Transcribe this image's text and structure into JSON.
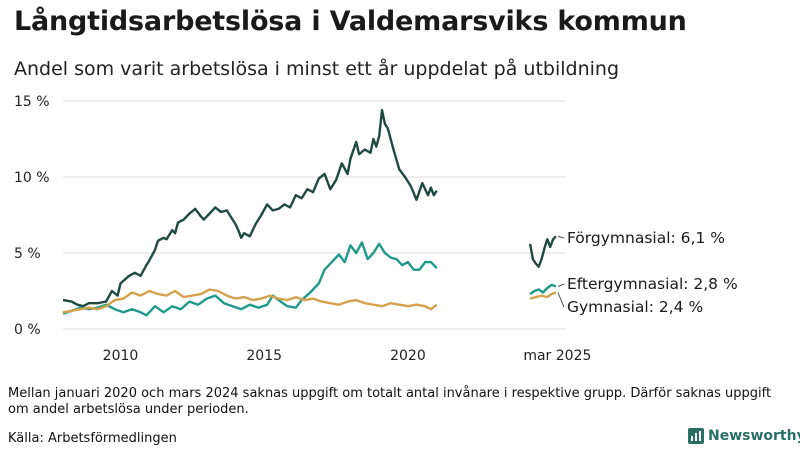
{
  "header": {
    "title": "Långtidsarbetslösa i Valdemarsviks kommun",
    "subtitle": "Andel som varit arbetslösa i minst ett år uppdelat på utbildning"
  },
  "footer": {
    "note": "Mellan januari 2020 och mars 2024 saknas uppgift om totalt antal invånare i respektive grupp. Därför saknas uppgift om andel arbetslösa under perioden.",
    "source": "Källa: Arbetsförmedlingen",
    "brand": "Newsworthy"
  },
  "colors": {
    "forgymnasial": "#1f4a42",
    "eftergymnasial": "#1f9a8a",
    "gymnasial": "#d4a24c",
    "grid": "#dcdcdc",
    "brand": "#2a6f63"
  },
  "chart_data": {
    "type": "line",
    "y_unit": "%",
    "ylim": [
      0,
      15
    ],
    "y_ticks": [
      {
        "value": 0,
        "label": "0 %"
      },
      {
        "value": 5,
        "label": "5 %"
      },
      {
        "value": 10,
        "label": "10 %"
      },
      {
        "value": 15,
        "label": "15 %"
      }
    ],
    "xlim": [
      2008.0,
      2025.5
    ],
    "x_ticks": [
      {
        "value": 2010,
        "label": "2010"
      },
      {
        "value": 2015,
        "label": "2015"
      },
      {
        "value": 2020,
        "label": "2020"
      },
      {
        "value": 2025.2,
        "label": "mar 2025"
      }
    ],
    "grid": "horizontal",
    "series": [
      {
        "name": "Förgymnasial",
        "end_label": "Förgymnasial: 6,1 %",
        "color_key": "forgymnasial",
        "segments": [
          [
            [
              2008.0,
              1.9
            ],
            [
              2008.3,
              1.8
            ],
            [
              2008.5,
              1.6
            ],
            [
              2008.7,
              1.5
            ],
            [
              2008.9,
              1.7
            ],
            [
              2009.2,
              1.7
            ],
            [
              2009.5,
              1.8
            ],
            [
              2009.7,
              2.5
            ],
            [
              2009.9,
              2.2
            ],
            [
              2010.0,
              3.0
            ],
            [
              2010.3,
              3.5
            ],
            [
              2010.5,
              3.7
            ],
            [
              2010.7,
              3.5
            ],
            [
              2010.9,
              4.2
            ],
            [
              2011.0,
              4.5
            ],
            [
              2011.2,
              5.2
            ],
            [
              2011.3,
              5.8
            ],
            [
              2011.5,
              6.0
            ],
            [
              2011.6,
              5.9
            ],
            [
              2011.8,
              6.5
            ],
            [
              2011.9,
              6.3
            ],
            [
              2012.0,
              7.0
            ],
            [
              2012.2,
              7.2
            ],
            [
              2012.4,
              7.6
            ],
            [
              2012.6,
              7.9
            ],
            [
              2012.8,
              7.4
            ],
            [
              2012.9,
              7.2
            ],
            [
              2013.1,
              7.6
            ],
            [
              2013.3,
              8.0
            ],
            [
              2013.5,
              7.7
            ],
            [
              2013.7,
              7.8
            ],
            [
              2013.9,
              7.2
            ],
            [
              2014.0,
              6.9
            ],
            [
              2014.1,
              6.5
            ],
            [
              2014.2,
              6.0
            ],
            [
              2014.3,
              6.3
            ],
            [
              2014.5,
              6.1
            ],
            [
              2014.7,
              6.9
            ],
            [
              2014.9,
              7.5
            ],
            [
              2015.1,
              8.2
            ],
            [
              2015.3,
              7.8
            ],
            [
              2015.5,
              7.9
            ],
            [
              2015.7,
              8.2
            ],
            [
              2015.9,
              8.0
            ],
            [
              2016.1,
              8.8
            ],
            [
              2016.3,
              8.6
            ],
            [
              2016.5,
              9.2
            ],
            [
              2016.7,
              9.0
            ],
            [
              2016.9,
              9.9
            ],
            [
              2017.1,
              10.2
            ],
            [
              2017.3,
              9.2
            ],
            [
              2017.5,
              9.8
            ],
            [
              2017.7,
              10.9
            ],
            [
              2017.9,
              10.2
            ],
            [
              2018.0,
              11.2
            ],
            [
              2018.2,
              12.3
            ],
            [
              2018.3,
              11.5
            ],
            [
              2018.5,
              11.8
            ],
            [
              2018.7,
              11.6
            ],
            [
              2018.8,
              12.5
            ],
            [
              2018.9,
              12.0
            ],
            [
              2019.0,
              12.7
            ],
            [
              2019.1,
              14.4
            ],
            [
              2019.2,
              13.5
            ],
            [
              2019.3,
              13.2
            ],
            [
              2019.5,
              11.8
            ],
            [
              2019.7,
              10.5
            ],
            [
              2019.9,
              10.0
            ],
            [
              2020.1,
              9.4
            ],
            [
              2020.3,
              8.5
            ],
            [
              2020.5,
              9.6
            ],
            [
              2020.7,
              8.8
            ],
            [
              2020.8,
              9.3
            ],
            [
              2020.9,
              8.8
            ],
            [
              2021.0,
              9.1
            ]
          ],
          [
            [
              2024.25,
              5.6
            ],
            [
              2024.35,
              4.6
            ],
            [
              2024.45,
              4.3
            ],
            [
              2024.55,
              4.1
            ],
            [
              2024.65,
              4.6
            ],
            [
              2024.75,
              5.3
            ],
            [
              2024.85,
              5.9
            ],
            [
              2024.95,
              5.4
            ],
            [
              2025.05,
              5.9
            ],
            [
              2025.15,
              6.1
            ]
          ]
        ]
      },
      {
        "name": "Eftergymnasial",
        "end_label": "Eftergymnasial: 2,8 %",
        "color_key": "eftergymnasial",
        "segments": [
          [
            [
              2008.0,
              1.0
            ],
            [
              2008.3,
              1.2
            ],
            [
              2008.6,
              1.4
            ],
            [
              2008.9,
              1.3
            ],
            [
              2009.2,
              1.4
            ],
            [
              2009.5,
              1.6
            ],
            [
              2009.8,
              1.3
            ],
            [
              2010.1,
              1.1
            ],
            [
              2010.4,
              1.3
            ],
            [
              2010.7,
              1.1
            ],
            [
              2010.9,
              0.9
            ],
            [
              2011.2,
              1.5
            ],
            [
              2011.5,
              1.1
            ],
            [
              2011.8,
              1.5
            ],
            [
              2012.1,
              1.3
            ],
            [
              2012.4,
              1.8
            ],
            [
              2012.7,
              1.6
            ],
            [
              2013.0,
              2.0
            ],
            [
              2013.3,
              2.2
            ],
            [
              2013.6,
              1.7
            ],
            [
              2013.9,
              1.5
            ],
            [
              2014.2,
              1.3
            ],
            [
              2014.5,
              1.6
            ],
            [
              2014.8,
              1.4
            ],
            [
              2015.1,
              1.6
            ],
            [
              2015.3,
              2.2
            ],
            [
              2015.5,
              1.9
            ],
            [
              2015.8,
              1.5
            ],
            [
              2016.1,
              1.4
            ],
            [
              2016.3,
              1.9
            ],
            [
              2016.6,
              2.4
            ],
            [
              2016.9,
              3.0
            ],
            [
              2017.1,
              3.9
            ],
            [
              2017.4,
              4.5
            ],
            [
              2017.6,
              4.9
            ],
            [
              2017.8,
              4.4
            ],
            [
              2018.0,
              5.5
            ],
            [
              2018.2,
              5.0
            ],
            [
              2018.4,
              5.7
            ],
            [
              2018.6,
              4.6
            ],
            [
              2018.8,
              5.0
            ],
            [
              2019.0,
              5.6
            ],
            [
              2019.2,
              5.0
            ],
            [
              2019.4,
              4.7
            ],
            [
              2019.6,
              4.6
            ],
            [
              2019.8,
              4.2
            ],
            [
              2020.0,
              4.4
            ],
            [
              2020.2,
              3.9
            ],
            [
              2020.4,
              3.9
            ],
            [
              2020.6,
              4.4
            ],
            [
              2020.8,
              4.4
            ],
            [
              2021.0,
              4.0
            ]
          ],
          [
            [
              2024.25,
              2.3
            ],
            [
              2024.4,
              2.5
            ],
            [
              2024.55,
              2.6
            ],
            [
              2024.7,
              2.4
            ],
            [
              2024.85,
              2.7
            ],
            [
              2025.0,
              2.9
            ],
            [
              2025.15,
              2.8
            ]
          ]
        ]
      },
      {
        "name": "Gymnasial",
        "end_label": "Gymnasial: 2,4 %",
        "color_key": "gymnasial",
        "segments": [
          [
            [
              2008.0,
              1.1
            ],
            [
              2008.3,
              1.2
            ],
            [
              2008.6,
              1.3
            ],
            [
              2008.9,
              1.4
            ],
            [
              2009.2,
              1.3
            ],
            [
              2009.5,
              1.5
            ],
            [
              2009.8,
              1.9
            ],
            [
              2010.1,
              2.0
            ],
            [
              2010.4,
              2.4
            ],
            [
              2010.7,
              2.2
            ],
            [
              2011.0,
              2.5
            ],
            [
              2011.3,
              2.3
            ],
            [
              2011.6,
              2.2
            ],
            [
              2011.9,
              2.5
            ],
            [
              2012.2,
              2.1
            ],
            [
              2012.5,
              2.2
            ],
            [
              2012.8,
              2.3
            ],
            [
              2013.1,
              2.6
            ],
            [
              2013.4,
              2.5
            ],
            [
              2013.7,
              2.2
            ],
            [
              2014.0,
              2.0
            ],
            [
              2014.3,
              2.1
            ],
            [
              2014.6,
              1.9
            ],
            [
              2014.9,
              2.0
            ],
            [
              2015.2,
              2.2
            ],
            [
              2015.5,
              2.0
            ],
            [
              2015.8,
              1.9
            ],
            [
              2016.1,
              2.1
            ],
            [
              2016.4,
              1.9
            ],
            [
              2016.7,
              2.0
            ],
            [
              2017.0,
              1.8
            ],
            [
              2017.3,
              1.7
            ],
            [
              2017.6,
              1.6
            ],
            [
              2017.9,
              1.8
            ],
            [
              2018.2,
              1.9
            ],
            [
              2018.5,
              1.7
            ],
            [
              2018.8,
              1.6
            ],
            [
              2019.1,
              1.5
            ],
            [
              2019.4,
              1.7
            ],
            [
              2019.7,
              1.6
            ],
            [
              2020.0,
              1.5
            ],
            [
              2020.3,
              1.6
            ],
            [
              2020.6,
              1.5
            ],
            [
              2020.8,
              1.3
            ],
            [
              2021.0,
              1.6
            ]
          ],
          [
            [
              2024.25,
              2.0
            ],
            [
              2024.45,
              2.1
            ],
            [
              2024.65,
              2.2
            ],
            [
              2024.85,
              2.1
            ],
            [
              2025.0,
              2.3
            ],
            [
              2025.15,
              2.4
            ]
          ]
        ]
      }
    ]
  }
}
